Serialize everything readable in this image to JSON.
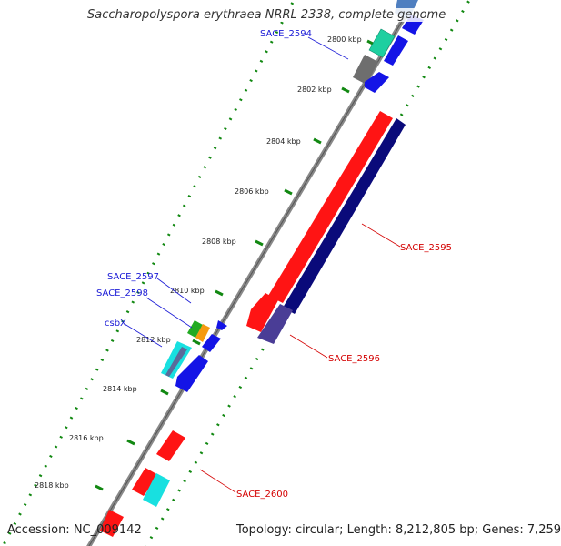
{
  "title": "Saccharopolyspora erythraea NRRL 2338, complete genome",
  "accession": "Accession: NC_009142",
  "topology": "Topology: circular; Length: 8,212,805 bp; Genes: 7,259",
  "ticks": [
    "2800 kbp",
    "2802 kbp",
    "2804 kbp",
    "2806 kbp",
    "2808 kbp",
    "2810 kbp",
    "2812 kbp",
    "2814 kbp",
    "2816 kbp",
    "2818 kbp"
  ],
  "gene_labels": {
    "sace_2594": "SACE_2594",
    "sace_2595": "SACE_2595",
    "sace_2596": "SACE_2596",
    "sace_2597": "SACE_2597",
    "sace_2598": "SACE_2598",
    "csbx": "csbX",
    "sace_2600": "SACE_2600"
  },
  "colors": {
    "red": "#ff1414",
    "navy": "#0a0a7a",
    "slate": "#4a3d96",
    "blue": "#1414e6",
    "teal": "#1ecfa0",
    "gray": "#6e6e6e",
    "green": "#22aa22",
    "orange": "#f59a10",
    "cyan": "#18e0e0",
    "steel": "#4f7fc0"
  }
}
